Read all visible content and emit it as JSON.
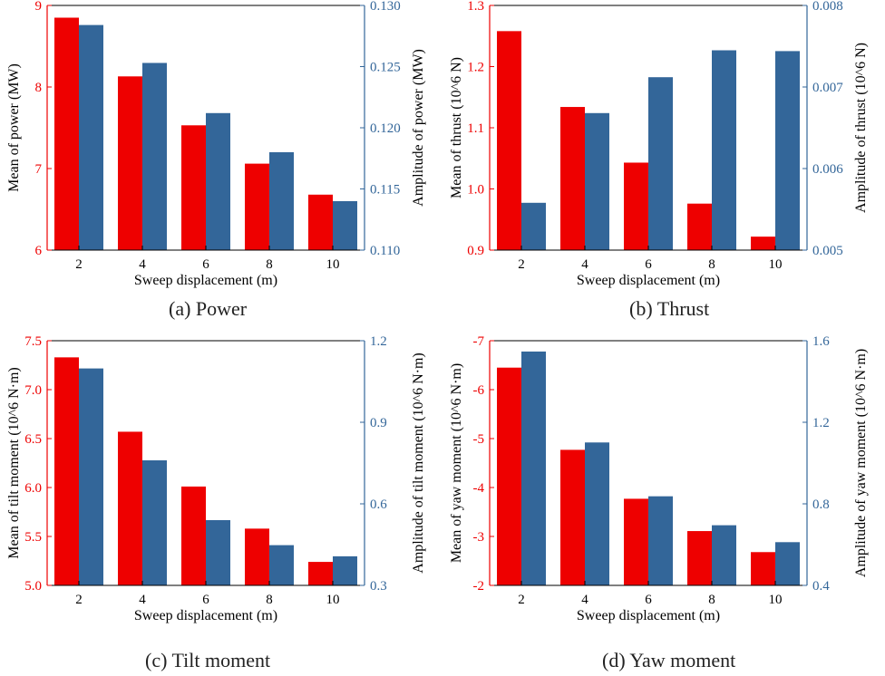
{
  "colors": {
    "left": "#ee0000",
    "right": "#336699",
    "axis": "#000000"
  },
  "chart_data": [
    {
      "type": "bar",
      "caption": "(a)  Power",
      "xlabel": "Sweep displacement (m)",
      "categories": [
        "2",
        "4",
        "6",
        "8",
        "10"
      ],
      "series": [
        {
          "name": "Mean of power (MW)",
          "axis": "left",
          "values": [
            8.85,
            8.13,
            7.53,
            7.06,
            6.68
          ]
        },
        {
          "name": "Amplitude of power (MW)",
          "axis": "right",
          "values": [
            0.1284,
            0.1253,
            0.1212,
            0.118,
            0.114
          ]
        }
      ],
      "left_axis": {
        "label": "Mean of power (MW)",
        "lim": [
          6,
          9
        ],
        "ticks": [
          6,
          7,
          8,
          9
        ],
        "tick_labels": [
          "6",
          "7",
          "8",
          "9"
        ],
        "inverted": false
      },
      "right_axis": {
        "label": "Amplitude of power (MW)",
        "lim": [
          0.11,
          0.13
        ],
        "ticks": [
          0.11,
          0.115,
          0.12,
          0.125,
          0.13
        ],
        "tick_labels": [
          "0.110",
          "0.115",
          "0.120",
          "0.125",
          "0.130"
        ]
      }
    },
    {
      "type": "bar",
      "caption": "(b)  Thrust",
      "xlabel": "Sweep displacement (m)",
      "categories": [
        "2",
        "4",
        "6",
        "8",
        "10"
      ],
      "series": [
        {
          "name": "Mean of thrust (10^6 N)",
          "axis": "left",
          "values": [
            1.258,
            1.134,
            1.043,
            0.976,
            0.922
          ]
        },
        {
          "name": "Amplitude of thrust (10^6 N)",
          "axis": "right",
          "values": [
            0.00558,
            0.00668,
            0.00712,
            0.00745,
            0.00744
          ]
        }
      ],
      "left_axis": {
        "label": "Mean of thrust (10^6 N)",
        "lim": [
          0.9,
          1.3
        ],
        "ticks": [
          0.9,
          1.0,
          1.1,
          1.2,
          1.3
        ],
        "tick_labels": [
          "0.9",
          "1.0",
          "1.1",
          "1.2",
          "1.3"
        ],
        "inverted": false
      },
      "right_axis": {
        "label": "Amplitude of thrust (10^6 N)",
        "lim": [
          0.005,
          0.008
        ],
        "ticks": [
          0.005,
          0.006,
          0.007,
          0.008
        ],
        "tick_labels": [
          "0.005",
          "0.006",
          "0.007",
          "0.008"
        ]
      }
    },
    {
      "type": "bar",
      "caption": "(c)  Tilt moment",
      "xlabel": "Sweep displacement (m)",
      "categories": [
        "2",
        "4",
        "6",
        "8",
        "10"
      ],
      "series": [
        {
          "name": "Mean of tilt moment (10^6 N·m)",
          "axis": "left",
          "values": [
            7.33,
            6.57,
            6.01,
            5.58,
            5.24
          ]
        },
        {
          "name": "Amplitude of tilt moment (10^6 N·m)",
          "axis": "right",
          "values": [
            1.098,
            0.76,
            0.54,
            0.448,
            0.407
          ]
        }
      ],
      "left_axis": {
        "label": "Mean of tilt moment (10^6 N·m)",
        "lim": [
          5.0,
          7.5
        ],
        "ticks": [
          5.0,
          5.5,
          6.0,
          6.5,
          7.0,
          7.5
        ],
        "tick_labels": [
          "5.0",
          "5.5",
          "6.0",
          "6.5",
          "7.0",
          "7.5"
        ],
        "inverted": false
      },
      "right_axis": {
        "label": "Amplitude of tilt moment (10^6 N·m)",
        "lim": [
          0.3,
          1.2
        ],
        "ticks": [
          0.3,
          0.6,
          0.9,
          1.2
        ],
        "tick_labels": [
          "0.3",
          "0.6",
          "0.9",
          "1.2"
        ]
      }
    },
    {
      "type": "bar",
      "caption": "(d)  Yaw moment",
      "xlabel": "Sweep displacement (m)",
      "categories": [
        "2",
        "4",
        "6",
        "8",
        "10"
      ],
      "series": [
        {
          "name": "Mean of yaw moment (10^6 N·m)",
          "axis": "left",
          "values": [
            -6.45,
            -4.77,
            -3.77,
            -3.11,
            -2.68
          ]
        },
        {
          "name": "Amplitude of yaw moment (10^6 N·m)",
          "axis": "right",
          "values": [
            1.547,
            1.101,
            0.837,
            0.695,
            0.612
          ]
        }
      ],
      "left_axis": {
        "label": "Mean of yaw moment (10^6 N·m)",
        "lim": [
          -2,
          -7
        ],
        "ticks": [
          -2,
          -3,
          -4,
          -5,
          -6,
          -7
        ],
        "tick_labels": [
          "-2",
          "-3",
          "-4",
          "-5",
          "-6",
          "-7"
        ],
        "inverted": true
      },
      "right_axis": {
        "label": "Amplitude of yaw moment (10^6 N·m)",
        "lim": [
          0.4,
          1.6
        ],
        "ticks": [
          0.4,
          0.8,
          1.2,
          1.6
        ],
        "tick_labels": [
          "0.4",
          "0.8",
          "1.2",
          "1.6"
        ]
      }
    }
  ]
}
